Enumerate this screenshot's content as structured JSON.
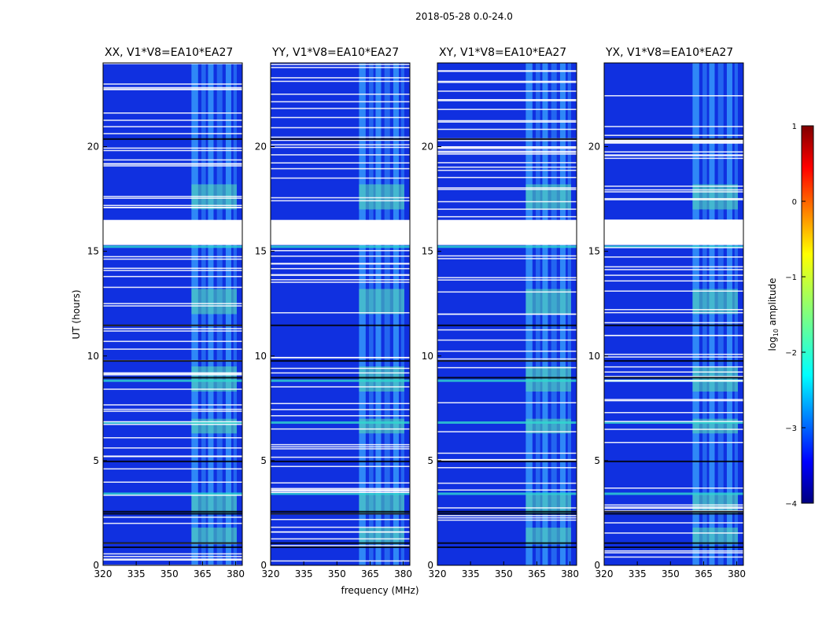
{
  "figure_title": "2018-05-28 0.0-24.0",
  "chart_data": {
    "type": "heatmap",
    "title": "2018-05-28 0.0-24.0",
    "xlabel": "frequency (MHz)",
    "ylabel": "UT (hours)",
    "xlim": [
      320,
      383
    ],
    "ylim": [
      0,
      24
    ],
    "x_ticks": [
      320,
      335,
      350,
      365,
      380
    ],
    "y_ticks": [
      0,
      5,
      10,
      15,
      20
    ],
    "panels": [
      {
        "title": "XX, V1*V8=EA10*EA27",
        "polarization": "XX"
      },
      {
        "title": "YY, V1*V8=EA10*EA27",
        "polarization": "YY"
      },
      {
        "title": "XY, V1*V8=EA10*EA27",
        "polarization": "XY"
      },
      {
        "title": "YX, V1*V8=EA10*EA27",
        "polarization": "YX"
      }
    ],
    "colorbar": {
      "label": "log10 amplitude",
      "label_base": "log",
      "label_sub": "10",
      "label_rest": " amplitude",
      "range": [
        -4,
        1
      ],
      "ticks": [
        "1",
        "0",
        "−1",
        "−2",
        "−3",
        "−4"
      ],
      "colormap": "jet"
    },
    "rfi_band_mhz": [
      360,
      380
    ],
    "data_gap_hours": [
      15.3,
      16.5
    ],
    "flagged_bright_rows_hours": [
      3.4,
      6.8,
      8.8,
      15.2
    ]
  }
}
